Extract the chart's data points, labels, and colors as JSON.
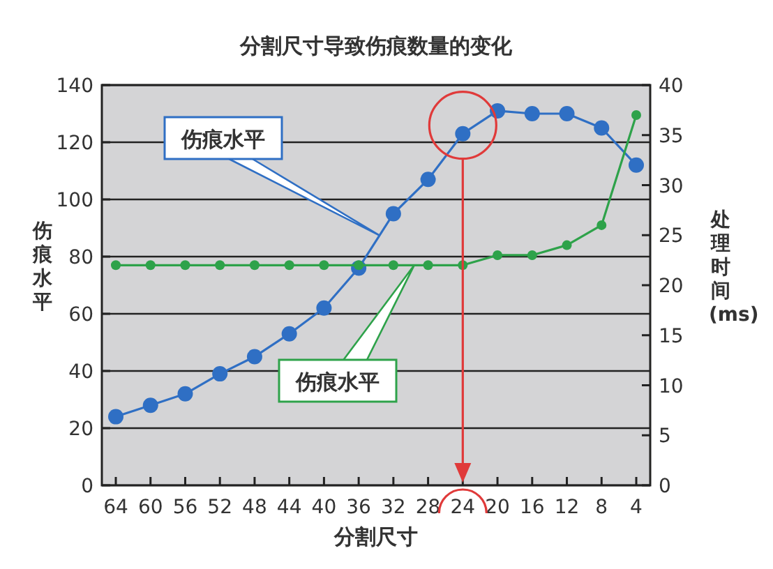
{
  "chart_data": {
    "type": "line",
    "title": "分割尺寸导致伤痕数量的变化",
    "xlabel": "分割尺寸",
    "ylabel": "伤痕水平",
    "y2label": "处理时间 (ms)",
    "categories": [
      "64",
      "60",
      "56",
      "52",
      "48",
      "44",
      "40",
      "36",
      "32",
      "28",
      "24",
      "20",
      "16",
      "12",
      "8",
      "4"
    ],
    "series": [
      {
        "name": "伤痕水平",
        "color": "#2f6fc4",
        "values": [
          24,
          28,
          32,
          39,
          45,
          53,
          62,
          76,
          95,
          107,
          123,
          131,
          130,
          130,
          125,
          112
        ]
      },
      {
        "name": "伤痕水平",
        "color": "#2ea24a",
        "axis": "y2",
        "values": [
          22,
          22,
          22,
          22,
          22,
          22,
          22,
          22,
          22,
          22,
          22,
          23,
          23,
          24,
          26,
          37
        ]
      }
    ],
    "ylim": [
      0,
      140
    ],
    "yticks": [
      0,
      20,
      40,
      60,
      80,
      100,
      120,
      140
    ],
    "y2lim": [
      0,
      40
    ],
    "y2ticks": [
      0,
      5,
      10,
      15,
      20,
      25,
      30,
      35,
      40
    ],
    "grid": "y",
    "marker": "circle",
    "line_style": "solid"
  }
}
